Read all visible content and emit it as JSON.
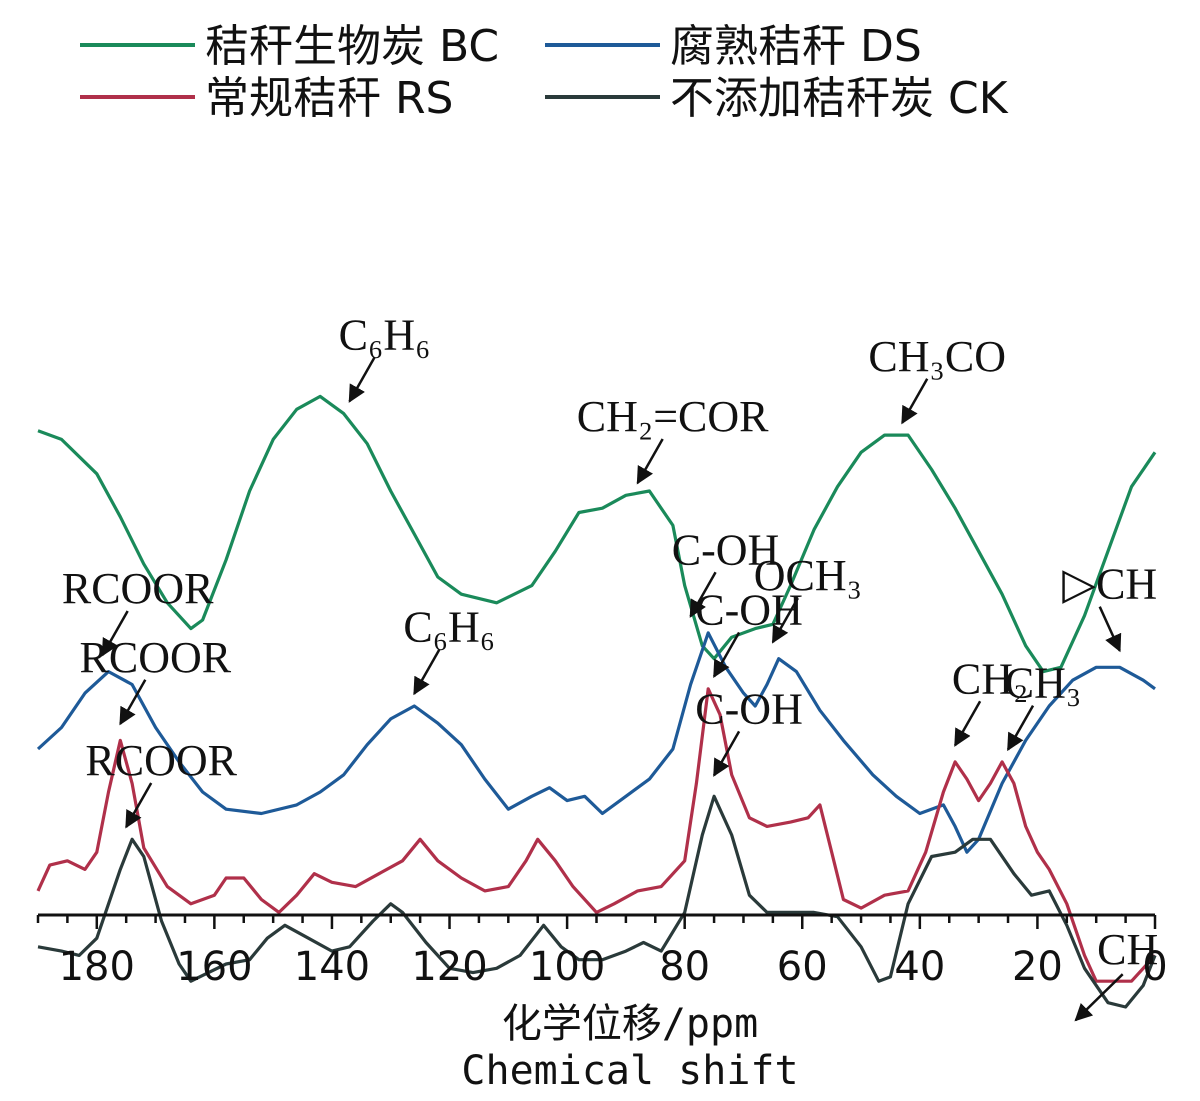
{
  "chart_data": {
    "type": "line",
    "xlabel": "化学位移/ppm",
    "xlabel_en": "Chemical shift",
    "xlim": [
      190,
      0
    ],
    "x_ticks": [
      180,
      160,
      140,
      120,
      100,
      80,
      60,
      40,
      20,
      0
    ],
    "grid": false,
    "legend_position": "top",
    "series": [
      {
        "name": "秸秆生物炭 BC",
        "color": "#1a8a5a",
        "offset": 0.86,
        "points": [
          [
            190,
            0.58
          ],
          [
            186,
            0.56
          ],
          [
            180,
            0.48
          ],
          [
            176,
            0.38
          ],
          [
            172,
            0.27
          ],
          [
            168,
            0.18
          ],
          [
            164,
            0.12
          ],
          [
            162,
            0.14
          ],
          [
            158,
            0.28
          ],
          [
            154,
            0.44
          ],
          [
            150,
            0.56
          ],
          [
            146,
            0.63
          ],
          [
            142,
            0.66
          ],
          [
            138,
            0.62
          ],
          [
            134,
            0.55
          ],
          [
            130,
            0.44
          ],
          [
            126,
            0.34
          ],
          [
            122,
            0.24
          ],
          [
            118,
            0.2
          ],
          [
            112,
            0.18
          ],
          [
            106,
            0.22
          ],
          [
            102,
            0.3
          ],
          [
            98,
            0.39
          ],
          [
            94,
            0.4
          ],
          [
            90,
            0.43
          ],
          [
            86,
            0.44
          ],
          [
            82,
            0.36
          ],
          [
            80,
            0.22
          ],
          [
            77,
            0.08
          ],
          [
            75,
            0.05
          ],
          [
            72,
            0.1
          ],
          [
            68,
            0.12
          ],
          [
            65,
            0.13
          ],
          [
            62,
            0.22
          ],
          [
            58,
            0.35
          ],
          [
            54,
            0.45
          ],
          [
            50,
            0.53
          ],
          [
            46,
            0.57
          ],
          [
            42,
            0.57
          ],
          [
            38,
            0.49
          ],
          [
            34,
            0.4
          ],
          [
            30,
            0.3
          ],
          [
            26,
            0.2
          ],
          [
            22,
            0.08
          ],
          [
            19,
            0.02
          ],
          [
            16,
            0.03
          ],
          [
            12,
            0.15
          ],
          [
            8,
            0.3
          ],
          [
            4,
            0.45
          ],
          [
            0,
            0.53
          ]
        ]
      },
      {
        "name": "腐熟秸秆 DS",
        "color": "#1e5a98",
        "offset": 0.55,
        "points": [
          [
            190,
            0.15
          ],
          [
            186,
            0.2
          ],
          [
            182,
            0.28
          ],
          [
            178,
            0.33
          ],
          [
            174,
            0.3
          ],
          [
            170,
            0.2
          ],
          [
            166,
            0.12
          ],
          [
            162,
            0.05
          ],
          [
            158,
            0.01
          ],
          [
            152,
            0.0
          ],
          [
            146,
            0.02
          ],
          [
            142,
            0.05
          ],
          [
            138,
            0.09
          ],
          [
            134,
            0.16
          ],
          [
            130,
            0.22
          ],
          [
            126,
            0.25
          ],
          [
            122,
            0.21
          ],
          [
            118,
            0.16
          ],
          [
            114,
            0.08
          ],
          [
            110,
            0.01
          ],
          [
            106,
            0.04
          ],
          [
            103,
            0.06
          ],
          [
            100,
            0.03
          ],
          [
            97,
            0.04
          ],
          [
            94,
            0.0
          ],
          [
            90,
            0.04
          ],
          [
            86,
            0.08
          ],
          [
            82,
            0.15
          ],
          [
            79,
            0.3
          ],
          [
            76,
            0.42
          ],
          [
            73,
            0.34
          ],
          [
            70,
            0.28
          ],
          [
            68,
            0.25
          ],
          [
            66,
            0.3
          ],
          [
            64,
            0.36
          ],
          [
            61,
            0.33
          ],
          [
            57,
            0.24
          ],
          [
            53,
            0.17
          ],
          [
            48,
            0.09
          ],
          [
            44,
            0.04
          ],
          [
            40,
            0.0
          ],
          [
            36,
            0.02
          ],
          [
            34,
            -0.03
          ],
          [
            32,
            -0.09
          ],
          [
            30,
            -0.06
          ],
          [
            26,
            0.07
          ],
          [
            22,
            0.17
          ],
          [
            18,
            0.25
          ],
          [
            14,
            0.31
          ],
          [
            10,
            0.34
          ],
          [
            6,
            0.34
          ],
          [
            2,
            0.31
          ],
          [
            0,
            0.29
          ]
        ]
      },
      {
        "name": "常规秸秆 RS",
        "color": "#b0304a",
        "offset": 0.32,
        "points": [
          [
            190,
            0.05
          ],
          [
            188,
            0.11
          ],
          [
            185,
            0.12
          ],
          [
            182,
            0.1
          ],
          [
            180,
            0.14
          ],
          [
            178,
            0.28
          ],
          [
            176,
            0.4
          ],
          [
            174,
            0.3
          ],
          [
            172,
            0.15
          ],
          [
            168,
            0.06
          ],
          [
            164,
            0.02
          ],
          [
            160,
            0.04
          ],
          [
            158,
            0.08
          ],
          [
            155,
            0.08
          ],
          [
            152,
            0.03
          ],
          [
            149,
            0.0
          ],
          [
            146,
            0.04
          ],
          [
            143,
            0.09
          ],
          [
            140,
            0.07
          ],
          [
            136,
            0.06
          ],
          [
            132,
            0.09
          ],
          [
            128,
            0.12
          ],
          [
            125,
            0.17
          ],
          [
            122,
            0.12
          ],
          [
            118,
            0.08
          ],
          [
            114,
            0.05
          ],
          [
            110,
            0.06
          ],
          [
            107,
            0.12
          ],
          [
            105,
            0.17
          ],
          [
            102,
            0.12
          ],
          [
            99,
            0.06
          ],
          [
            95,
            0.0
          ],
          [
            92,
            0.02
          ],
          [
            88,
            0.05
          ],
          [
            84,
            0.06
          ],
          [
            80,
            0.12
          ],
          [
            78,
            0.3
          ],
          [
            76,
            0.52
          ],
          [
            74,
            0.46
          ],
          [
            72,
            0.32
          ],
          [
            69,
            0.22
          ],
          [
            66,
            0.2
          ],
          [
            62,
            0.21
          ],
          [
            59,
            0.22
          ],
          [
            57,
            0.25
          ],
          [
            55,
            0.14
          ],
          [
            53,
            0.03
          ],
          [
            50,
            0.01
          ],
          [
            46,
            0.04
          ],
          [
            42,
            0.05
          ],
          [
            39,
            0.14
          ],
          [
            36,
            0.28
          ],
          [
            34,
            0.35
          ],
          [
            32,
            0.31
          ],
          [
            30,
            0.26
          ],
          [
            28,
            0.3
          ],
          [
            26,
            0.35
          ],
          [
            24,
            0.3
          ],
          [
            22,
            0.2
          ],
          [
            20,
            0.14
          ],
          [
            18,
            0.1
          ],
          [
            15,
            0.02
          ],
          [
            12,
            -0.1
          ],
          [
            10,
            -0.16
          ],
          [
            7,
            -0.16
          ],
          [
            4,
            -0.16
          ],
          [
            0,
            -0.1
          ]
        ]
      },
      {
        "name": "不添加秸秆炭 CK",
        "color": "#2a3a3a",
        "offset": 0.12,
        "points": [
          [
            190,
            0.12
          ],
          [
            186,
            0.11
          ],
          [
            183,
            0.1
          ],
          [
            180,
            0.14
          ],
          [
            176,
            0.3
          ],
          [
            174,
            0.37
          ],
          [
            172,
            0.33
          ],
          [
            169,
            0.18
          ],
          [
            166,
            0.08
          ],
          [
            164,
            0.04
          ],
          [
            161,
            0.06
          ],
          [
            158,
            0.08
          ],
          [
            154,
            0.09
          ],
          [
            151,
            0.14
          ],
          [
            148,
            0.17
          ],
          [
            144,
            0.14
          ],
          [
            140,
            0.11
          ],
          [
            137,
            0.12
          ],
          [
            133,
            0.18
          ],
          [
            130,
            0.22
          ],
          [
            128,
            0.2
          ],
          [
            124,
            0.13
          ],
          [
            120,
            0.07
          ],
          [
            116,
            0.06
          ],
          [
            112,
            0.07
          ],
          [
            108,
            0.1
          ],
          [
            104,
            0.17
          ],
          [
            101,
            0.12
          ],
          [
            98,
            0.09
          ],
          [
            94,
            0.09
          ],
          [
            90,
            0.11
          ],
          [
            87,
            0.13
          ],
          [
            84,
            0.11
          ],
          [
            80,
            0.2
          ],
          [
            77,
            0.38
          ],
          [
            75,
            0.47
          ],
          [
            72,
            0.38
          ],
          [
            69,
            0.24
          ],
          [
            66,
            0.2
          ],
          [
            62,
            0.2
          ],
          [
            58,
            0.2
          ],
          [
            54,
            0.19
          ],
          [
            50,
            0.12
          ],
          [
            47,
            0.04
          ],
          [
            45,
            0.05
          ],
          [
            42,
            0.22
          ],
          [
            38,
            0.33
          ],
          [
            34,
            0.34
          ],
          [
            31,
            0.37
          ],
          [
            28,
            0.37
          ],
          [
            24,
            0.29
          ],
          [
            21,
            0.24
          ],
          [
            18,
            0.25
          ],
          [
            15,
            0.17
          ],
          [
            12,
            0.07
          ],
          [
            8,
            -0.01
          ],
          [
            5,
            -0.02
          ],
          [
            2,
            0.03
          ],
          [
            0,
            0.1
          ]
        ]
      }
    ],
    "annotations": [
      {
        "label": "C₆H₆",
        "series": 0,
        "x": 137,
        "y": 0.63
      },
      {
        "label": "CH₂=COR",
        "series": 0,
        "x": 88,
        "y": 0.44
      },
      {
        "label": "CH₃CO",
        "series": 0,
        "x": 43,
        "y": 0.58
      },
      {
        "label": "RCOOR",
        "series": 1,
        "x": 179,
        "y": 0.35
      },
      {
        "label": "C₆H₆",
        "series": 1,
        "x": 126,
        "y": 0.26
      },
      {
        "label": "C-OH",
        "series": 1,
        "x": 79,
        "y": 0.44
      },
      {
        "label": "OCH₃",
        "series": 1,
        "x": 65,
        "y": 0.38
      },
      {
        "label": "▷CH",
        "series": 1,
        "x": 6,
        "y": 0.36
      },
      {
        "label": "RCOOR",
        "series": 2,
        "x": 176,
        "y": 0.42
      },
      {
        "label": "C-OH",
        "series": 2,
        "x": 75,
        "y": 0.53
      },
      {
        "label": "CH₂",
        "series": 2,
        "x": 34,
        "y": 0.37
      },
      {
        "label": "CH₃",
        "series": 2,
        "x": 25,
        "y": 0.36
      },
      {
        "label": "RCOOR",
        "series": 3,
        "x": 175,
        "y": 0.38
      },
      {
        "label": "C-OH",
        "series": 3,
        "x": 75,
        "y": 0.5
      },
      {
        "label": "CH",
        "series": 3,
        "x": 14,
        "y": -0.06
      }
    ]
  }
}
